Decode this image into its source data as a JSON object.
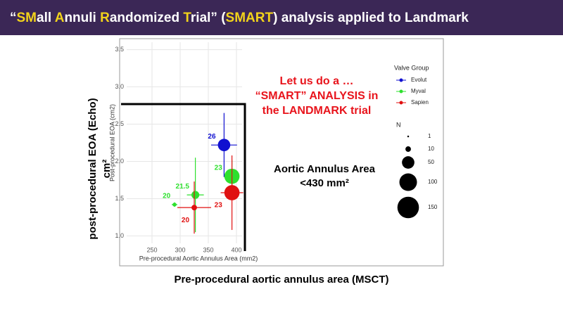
{
  "header": {
    "title_parts": [
      {
        "text": "“",
        "highlight": false
      },
      {
        "text": "SM",
        "highlight": true
      },
      {
        "text": "all ",
        "highlight": false
      },
      {
        "text": "A",
        "highlight": true
      },
      {
        "text": "nnuli ",
        "highlight": false
      },
      {
        "text": "R",
        "highlight": true
      },
      {
        "text": "andomized ",
        "highlight": false
      },
      {
        "text": "T",
        "highlight": true
      },
      {
        "text": "rial” (",
        "highlight": false
      },
      {
        "text": "SMART",
        "highlight": true
      },
      {
        "text": ") analysis applied to Landmark",
        "highlight": false
      }
    ],
    "background": "#3b2756",
    "color": "#ffffff",
    "highlight_color": "#f2d31b"
  },
  "outer_y_label": [
    "post-procedural EOA (Echo)",
    "cm²"
  ],
  "outer_x_label": "Pre-procedural aortic annulus area (MSCT)",
  "callout": {
    "lines": [
      "Let us do a …",
      "“SMART” ANALYSIS in",
      "the LANDMARK trial"
    ],
    "color": "#e8141c"
  },
  "threshold_note": [
    "Aortic Annulus Area",
    "<430 mm²"
  ],
  "chart_data": {
    "type": "scatter",
    "x_label": "Pre-procedural Aortic Annulus Area (mm2)",
    "y_label": "Post-procedural EOA (cm2)",
    "xlim": [
      205,
      410
    ],
    "xticks": [
      250,
      300,
      350,
      400
    ],
    "ylim": [
      0.9,
      3.6
    ],
    "yticks": [
      {
        "value": 1.0,
        "label": "1.0"
      },
      1.5,
      {
        "value": 2.0,
        "label": "2.0"
      },
      2.5,
      {
        "value": 3.0,
        "label": "3.0"
      },
      3.5
    ],
    "grid": true,
    "legend_title": "Valve Group",
    "size_legend": {
      "title": "N",
      "values": [
        1,
        10,
        50,
        100,
        150
      ]
    },
    "series": [
      {
        "name": "Evolut",
        "color": "#1010d0",
        "x": [
          378
        ],
        "values": [
          2.22
        ],
        "sizes": [
          50
        ],
        "xerr": [
          23
        ],
        "yerr": [
          0.43
        ],
        "point_labels": [
          "26"
        ]
      },
      {
        "name": "Myval",
        "color": "#2ee02e",
        "x": [
          392,
          327,
          290
        ],
        "values": [
          1.8,
          1.55,
          1.42
        ],
        "sizes": [
          75,
          20,
          5
        ],
        "xerr": [
          12,
          15,
          5
        ],
        "yerr": [
          0.22,
          0.5,
          0.03
        ],
        "point_labels": [
          "23",
          "21.5",
          "20"
        ]
      },
      {
        "name": "Sapien",
        "color": "#e01010",
        "x": [
          392,
          325
        ],
        "values": [
          1.58,
          1.38
        ],
        "sizes": [
          75,
          10
        ],
        "xerr": [
          20,
          30
        ],
        "yerr": [
          0.5,
          0.35
        ],
        "point_labels": [
          "23",
          "20"
        ]
      }
    ]
  }
}
